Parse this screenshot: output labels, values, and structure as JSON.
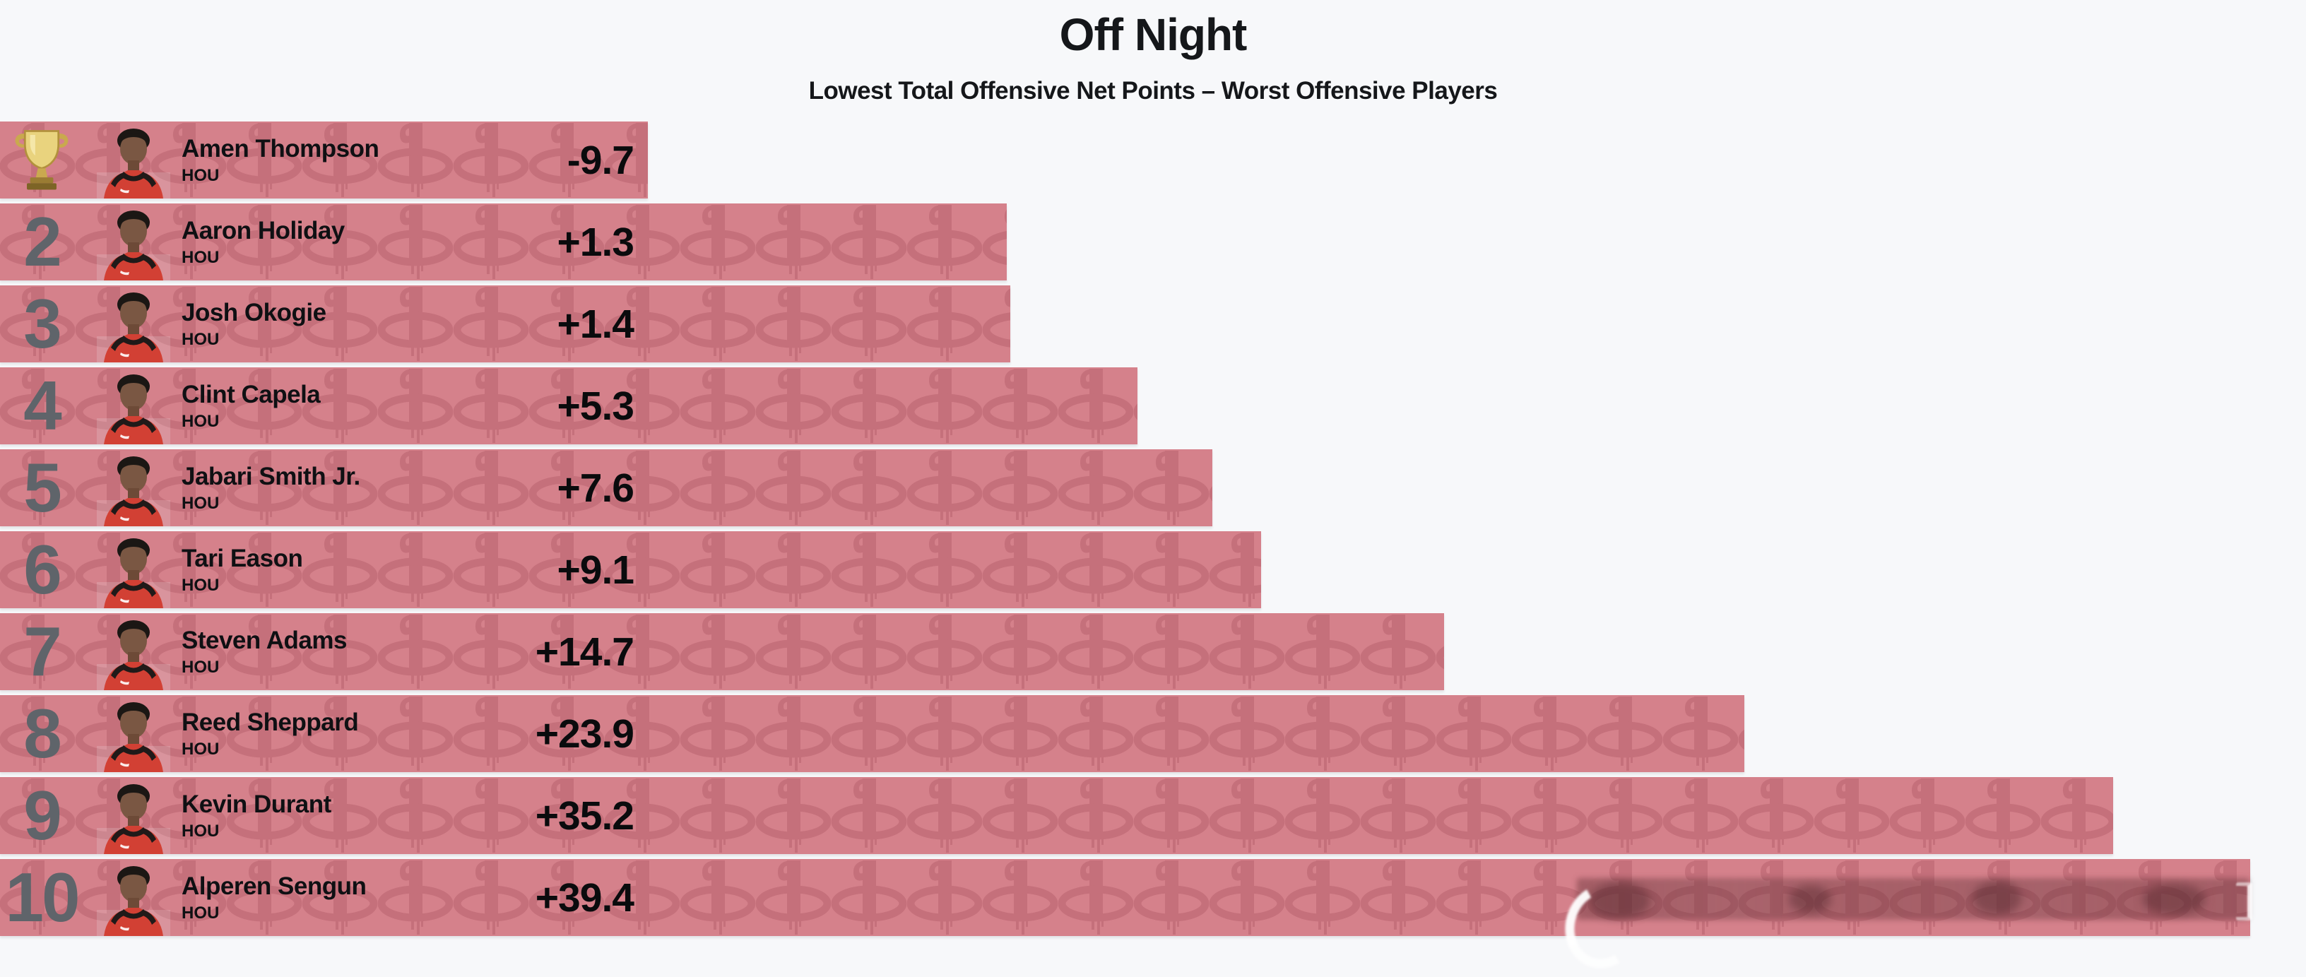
{
  "title": "Off Night",
  "subtitle": "Lowest Total Offensive Net Points – Worst Offensive Players",
  "colors": {
    "background": "#f7f8fa",
    "bar": "#d5818b",
    "bar_pattern_logo": "#b6606c",
    "rank_number": "#5f646a",
    "text": "#0f1013"
  },
  "icons": {
    "winner": "trophy-icon",
    "bar_watermark": "rockets-logo-icon"
  },
  "chart_data": {
    "type": "bar",
    "orientation": "horizontal",
    "title": "Off Night",
    "subtitle": "Lowest Total Offensive Net Points – Worst Offensive Players",
    "categories": [
      "Amen Thompson",
      "Aaron Holiday",
      "Josh Okogie",
      "Clint Capela",
      "Jabari Smith Jr.",
      "Tari Eason",
      "Steven Adams",
      "Reed Sheppard",
      "Kevin Durant",
      "Alperen Sengun"
    ],
    "series": [
      {
        "name": "Total Offensive Net Points",
        "values": [
          -9.7,
          1.3,
          1.4,
          5.3,
          7.6,
          9.1,
          14.7,
          23.9,
          35.2,
          39.4
        ]
      }
    ],
    "value_labels": [
      "-9.7",
      "+1.3",
      "+1.4",
      "+5.3",
      "+7.6",
      "+9.1",
      "+14.7",
      "+23.9",
      "+35.2",
      "+39.4"
    ],
    "bar_color": "#d5818b",
    "grid": false,
    "legend": "none",
    "axes_visible": false,
    "value_label_position": "fixed-left-column-inside-bar"
  },
  "rows": [
    {
      "rank": "1",
      "winner": true,
      "name": "Amen Thompson",
      "team": "HOU",
      "value": -9.7,
      "value_label": "-9.7"
    },
    {
      "rank": "2",
      "winner": false,
      "name": "Aaron Holiday",
      "team": "HOU",
      "value": 1.3,
      "value_label": "+1.3"
    },
    {
      "rank": "3",
      "winner": false,
      "name": "Josh Okogie",
      "team": "HOU",
      "value": 1.4,
      "value_label": "+1.4"
    },
    {
      "rank": "4",
      "winner": false,
      "name": "Clint Capela",
      "team": "HOU",
      "value": 5.3,
      "value_label": "+5.3"
    },
    {
      "rank": "5",
      "winner": false,
      "name": "Jabari Smith Jr.",
      "team": "HOU",
      "value": 7.6,
      "value_label": "+7.6"
    },
    {
      "rank": "6",
      "winner": false,
      "name": "Tari Eason",
      "team": "HOU",
      "value": 9.1,
      "value_label": "+9.1"
    },
    {
      "rank": "7",
      "winner": false,
      "name": "Steven Adams",
      "team": "HOU",
      "value": 14.7,
      "value_label": "+14.7"
    },
    {
      "rank": "8",
      "winner": false,
      "name": "Reed Sheppard",
      "team": "HOU",
      "value": 23.9,
      "value_label": "+23.9"
    },
    {
      "rank": "9",
      "winner": false,
      "name": "Kevin Durant",
      "team": "HOU",
      "value": 35.2,
      "value_label": "+35.2"
    },
    {
      "rank": "10",
      "winner": false,
      "name": "Alperen Sengun",
      "team": "HOU",
      "value": 39.4,
      "value_label": "+39.4"
    }
  ]
}
